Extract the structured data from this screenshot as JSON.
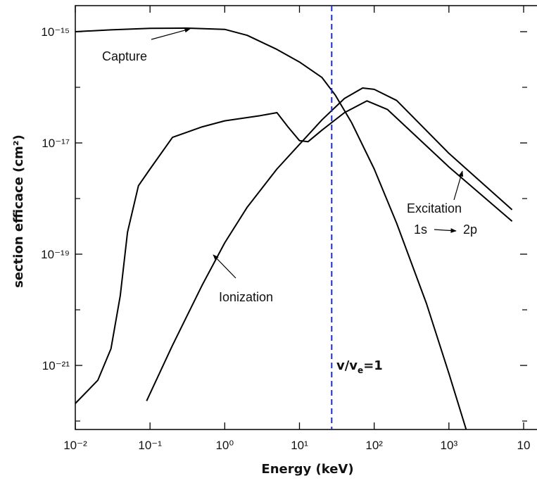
{
  "chart_data": {
    "type": "line",
    "xscale": "log",
    "yscale": "log",
    "xlabel": "Energy (keV)",
    "ylabel": "section efficace (cm²)",
    "xlim": [
      0.01,
      10000
    ],
    "ylim": [
      7.05e-23,
      2.94e-15
    ],
    "xticks": [
      {
        "value": 0.01,
        "label": "10⁻²"
      },
      {
        "value": 0.1,
        "label": "10⁻¹"
      },
      {
        "value": 1,
        "label": "10⁰"
      },
      {
        "value": 10,
        "label": "10¹"
      },
      {
        "value": 100,
        "label": "10²"
      },
      {
        "value": 1000,
        "label": "10³"
      },
      {
        "value": 10000,
        "label": "10"
      }
    ],
    "yticks": [
      {
        "value": 1e-15,
        "label": "10⁻¹⁵"
      },
      {
        "value": 1e-17,
        "label": "10⁻¹⁷"
      },
      {
        "value": 1e-19,
        "label": "10⁻¹⁹"
      },
      {
        "value": 1e-21,
        "label": "10⁻²¹"
      }
    ],
    "yticks_minor": [
      1e-16,
      1e-18,
      1e-20,
      1e-22
    ],
    "series": [
      {
        "name": "Capture",
        "color": "#000000",
        "x": [
          0.01,
          0.03,
          0.1,
          0.3,
          1,
          2,
          5,
          10,
          20,
          30,
          50,
          100,
          200,
          500,
          1000,
          1700
        ],
        "values": [
          1e-15,
          1.08e-15,
          1.15e-15,
          1.16e-15,
          1.1e-15,
          8.6e-16,
          4.8e-16,
          2.85e-16,
          1.5e-16,
          7.3e-17,
          2.3e-17,
          3.4e-18,
          3.6e-19,
          1.3e-20,
          7.2e-22,
          7.1e-23
        ]
      },
      {
        "name": "Ionization",
        "color": "#000000",
        "x": [
          0.09,
          0.2,
          0.5,
          1,
          2,
          5,
          10,
          20,
          40,
          70,
          100,
          200,
          1000,
          7000
        ],
        "values": [
          2.3e-22,
          2.3e-21,
          2.8e-20,
          1.6e-19,
          7e-19,
          3.4e-18,
          9.4e-18,
          2.6e-17,
          6.3e-17,
          9.7e-17,
          9.2e-17,
          5.8e-17,
          6.5e-18,
          6.3e-19
        ]
      },
      {
        "name": "Excitation",
        "color": "#000000",
        "x": [
          0.01,
          0.02,
          0.03,
          0.04,
          0.05,
          0.07,
          0.1,
          0.2,
          0.5,
          1,
          3,
          5,
          7,
          10,
          13,
          20,
          40,
          80,
          150,
          1000,
          7000
        ],
        "values": [
          2.07e-22,
          5.4e-22,
          2e-21,
          1.8e-20,
          2.5e-19,
          1.7e-18,
          3.4e-18,
          1.26e-17,
          1.95e-17,
          2.5e-17,
          3.1e-17,
          3.5e-17,
          1.95e-17,
          1.1e-17,
          1.05e-17,
          1.7e-17,
          3.5e-17,
          5.7e-17,
          4e-17,
          3.7e-18,
          3.9e-19
        ]
      }
    ],
    "excitation_from": "1s",
    "excitation_to": "2p",
    "vline": {
      "x": 27,
      "color": "#1a2fc4",
      "label_parts": [
        "v/v",
        "e",
        "=1"
      ]
    }
  }
}
